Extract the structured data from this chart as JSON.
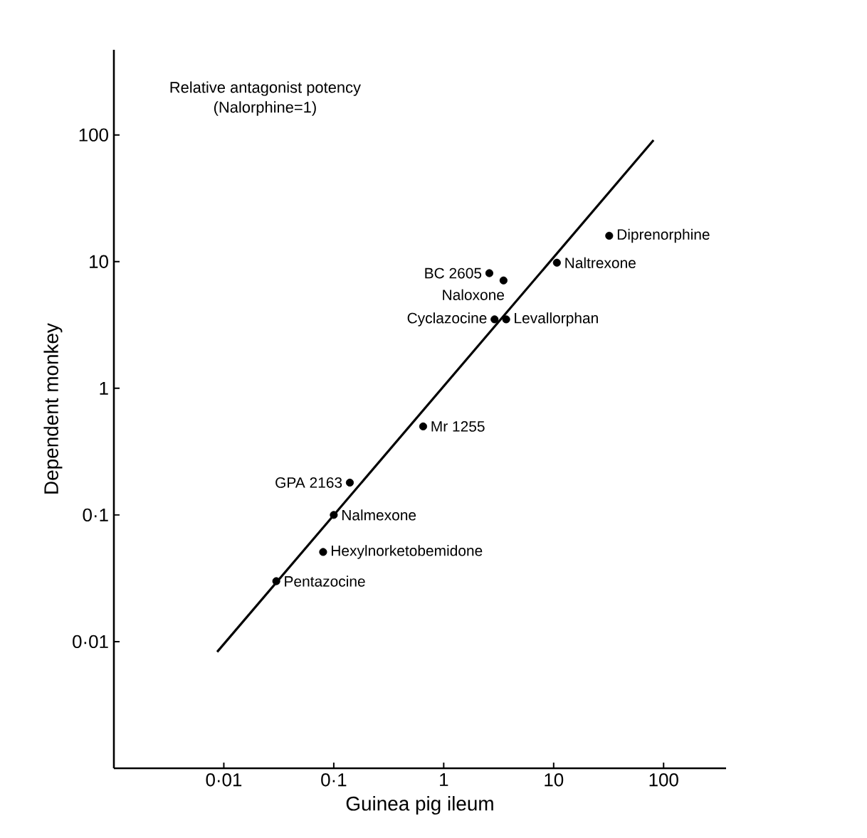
{
  "chart_data": {
    "type": "scatter",
    "title": "Relative antagonist potency",
    "subtitle": "(Nalorphine=1)",
    "xlabel": "Guinea pig ileum",
    "ylabel": "Dependent monkey",
    "log": "xy",
    "grid": false,
    "marker": "circle",
    "xlim": [
      0.001,
      370
    ],
    "ylim": [
      0.001,
      470
    ],
    "xticks": [
      {
        "value": 0.01,
        "label": "0·01"
      },
      {
        "value": 0.1,
        "label": "0·1"
      },
      1,
      10,
      100
    ],
    "yticks": [
      {
        "value": 0.01,
        "label": "0·01"
      },
      {
        "value": 0.1,
        "label": "0·1"
      },
      1,
      10,
      100
    ],
    "series": [
      {
        "color": "#000000",
        "x": [
          32,
          10.7,
          2.6,
          3.5,
          2.9,
          3.7,
          0.65,
          0.14,
          0.1,
          0.08,
          0.03
        ],
        "values": [
          16,
          9.8,
          8.1,
          7.1,
          3.5,
          3.5,
          0.5,
          0.18,
          0.1,
          0.051,
          0.03
        ]
      },
      {
        "type": "line",
        "color": "#000000",
        "line_style": "solid",
        "marker": "none",
        "x": [
          0.0087,
          81
        ],
        "values": [
          0.0083,
          91
        ]
      }
    ],
    "annotations": [
      {
        "text": "Diprenorphine",
        "x": 32,
        "y": 16
      },
      {
        "text": "Naltrexone",
        "x": 10.7,
        "y": 9.8
      },
      {
        "text": "BC 2605",
        "x": 2.6,
        "y": 8.1
      },
      {
        "text": "Naloxone",
        "x": 3.5,
        "y": 7.1
      },
      {
        "text": "Cyclazocine",
        "x": 2.9,
        "y": 3.5
      },
      {
        "text": "Levallorphan",
        "x": 3.7,
        "y": 3.5
      },
      {
        "text": "Mr 1255",
        "x": 0.65,
        "y": 0.5
      },
      {
        "text": "GPA 2163",
        "x": 0.14,
        "y": 0.18
      },
      {
        "text": "Nalmexone",
        "x": 0.1,
        "y": 0.1
      },
      {
        "text": "Hexylnorketobemidone",
        "x": 0.08,
        "y": 0.051
      },
      {
        "text": "Pentazocine",
        "x": 0.03,
        "y": 0.03
      }
    ]
  }
}
